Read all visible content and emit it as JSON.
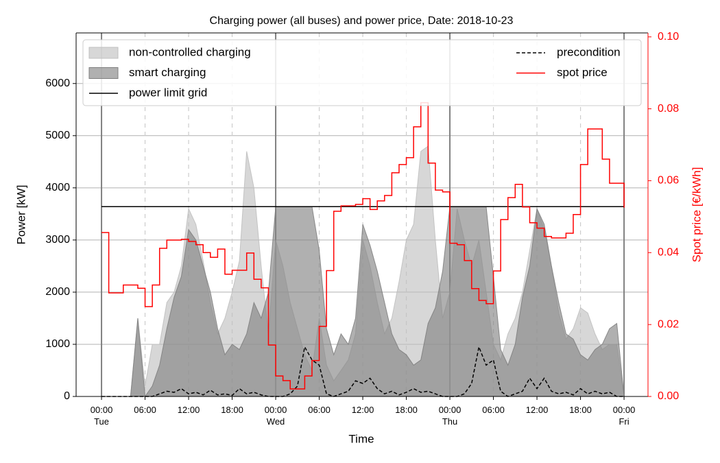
{
  "chart_data": {
    "type": "area",
    "title": "Charging power (all buses) and power price, Date: 2018-10-23",
    "xlabel": "Time",
    "ylabel": "Power [kW]",
    "y2label": "Spot price [€/kWh]",
    "x": [
      0,
      1,
      2,
      3,
      4,
      5,
      6,
      7,
      8,
      9,
      10,
      11,
      12,
      13,
      14,
      15,
      16,
      17,
      18,
      19,
      20,
      21,
      22,
      23,
      24,
      25,
      26,
      27,
      28,
      29,
      30,
      31,
      32,
      33,
      34,
      35,
      36,
      37,
      38,
      39,
      40,
      41,
      42,
      43,
      44,
      45,
      46,
      47,
      48,
      49,
      50,
      51,
      52,
      53,
      54,
      55,
      56,
      57,
      58,
      59,
      60,
      61,
      62,
      63,
      64,
      65,
      66,
      67,
      68,
      69,
      70,
      71,
      72
    ],
    "xlim": [
      -3.5,
      75.3
    ],
    "xticks": [
      {
        "value": 0,
        "label": "00:00\nTue"
      },
      {
        "value": 6,
        "label": "06:00"
      },
      {
        "value": 12,
        "label": "12:00"
      },
      {
        "value": 18,
        "label": "18:00"
      },
      {
        "value": 24,
        "label": "00:00\nWed"
      },
      {
        "value": 30,
        "label": "06:00"
      },
      {
        "value": 36,
        "label": "12:00"
      },
      {
        "value": 42,
        "label": "18:00"
      },
      {
        "value": 48,
        "label": "00:00\nThu"
      },
      {
        "value": 54,
        "label": "06:00"
      },
      {
        "value": 60,
        "label": "12:00"
      },
      {
        "value": 66,
        "label": "18:00"
      },
      {
        "value": 72,
        "label": "00:00\nFri"
      }
    ],
    "ylim": [
      0,
      6970
    ],
    "yticks": [
      0,
      1000,
      2000,
      3000,
      4000,
      5000,
      6000
    ],
    "y2lim": [
      0,
      0.1011
    ],
    "y2ticks": [
      {
        "value": 0,
        "label": "0.00"
      },
      {
        "value": 0.02,
        "label": "0.02"
      },
      {
        "value": 0.04,
        "label": "0.04"
      },
      {
        "value": 0.06,
        "label": "0.06"
      },
      {
        "value": 0.08,
        "label": "0.08"
      },
      {
        "value": 0.1,
        "label": "0.10"
      }
    ],
    "grid": true,
    "legend": "upper",
    "series": [
      {
        "name": "non-controlled charging",
        "type": "area",
        "color": "#bfbfbf",
        "values": [
          0,
          0,
          0,
          0,
          0,
          1500,
          200,
          1000,
          1000,
          1800,
          2000,
          2500,
          3600,
          3300,
          2600,
          1800,
          1200,
          1500,
          2000,
          2600,
          4700,
          4000,
          2500,
          1200,
          3000,
          2500,
          1800,
          1300,
          800,
          500,
          1500,
          600,
          300,
          500,
          700,
          1200,
          3000,
          2500,
          1800,
          1200,
          1500,
          2200,
          3000,
          3300,
          4700,
          4800,
          3000,
          1500,
          2000,
          3600,
          3000,
          2500,
          3000,
          2000,
          1000,
          700,
          1200,
          1500,
          2000,
          2800,
          3600,
          3200,
          2500,
          1600,
          1100,
          1300,
          1700,
          1600,
          1200,
          900,
          1000,
          1000,
          0
        ]
      },
      {
        "name": "smart charging",
        "type": "area",
        "color": "#7f7f7f",
        "values": [
          0,
          0,
          0,
          0,
          0,
          1500,
          0,
          200,
          600,
          1300,
          1900,
          2300,
          3200,
          3000,
          2500,
          2000,
          1300,
          800,
          1000,
          900,
          1200,
          1800,
          1500,
          2000,
          3640,
          3640,
          3640,
          3640,
          3640,
          3640,
          2800,
          1300,
          800,
          1200,
          1000,
          1500,
          3300,
          2900,
          2400,
          1800,
          1200,
          900,
          800,
          600,
          700,
          1400,
          1700,
          2400,
          3640,
          3640,
          3640,
          3640,
          3640,
          3640,
          2300,
          900,
          600,
          1000,
          1900,
          2500,
          3600,
          3300,
          2500,
          1800,
          1200,
          1100,
          800,
          700,
          900,
          1000,
          1300,
          1400,
          0
        ]
      },
      {
        "name": "power limit grid",
        "type": "hline",
        "color": "#000000",
        "value": 3640
      },
      {
        "name": "precondition",
        "type": "line",
        "dash": true,
        "color": "#000000",
        "values": [
          0,
          0,
          0,
          0,
          0,
          0,
          0,
          0,
          50,
          100,
          80,
          150,
          50,
          80,
          30,
          120,
          30,
          50,
          20,
          150,
          50,
          80,
          30,
          0,
          0,
          0,
          50,
          200,
          950,
          700,
          600,
          50,
          0,
          50,
          100,
          300,
          250,
          350,
          150,
          50,
          100,
          30,
          80,
          150,
          80,
          100,
          50,
          0,
          0,
          0,
          50,
          250,
          950,
          600,
          700,
          100,
          0,
          50,
          100,
          350,
          150,
          350,
          100,
          50,
          80,
          30,
          150,
          50,
          100,
          50,
          80,
          0,
          0
        ]
      },
      {
        "name": "spot price",
        "type": "step",
        "axis": "y2",
        "color": "#ff0000",
        "values": [
          0.0456,
          0.0288,
          0.0288,
          0.031,
          0.031,
          0.0301,
          0.025,
          0.031,
          0.0412,
          0.0435,
          0.0435,
          0.0437,
          0.0431,
          0.0422,
          0.04,
          0.0387,
          0.041,
          0.034,
          0.0351,
          0.0351,
          0.0399,
          0.0326,
          0.0302,
          0.0143,
          0.0057,
          0.0044,
          0.0021,
          0.0021,
          0.0057,
          0.01,
          0.0195,
          0.035,
          0.0515,
          0.053,
          0.053,
          0.0534,
          0.055,
          0.052,
          0.0544,
          0.0559,
          0.0622,
          0.0645,
          0.0664,
          0.075,
          0.0817,
          0.0649,
          0.0574,
          0.0569,
          0.0426,
          0.0422,
          0.0378,
          0.03,
          0.0267,
          0.0258,
          0.0349,
          0.0492,
          0.0553,
          0.059,
          0.0527,
          0.0483,
          0.0468,
          0.0445,
          0.0441,
          0.0441,
          0.0454,
          0.0506,
          0.0645,
          0.0744,
          0.0744,
          0.066,
          0.0593,
          0.0593,
          0.0525
        ]
      }
    ]
  }
}
